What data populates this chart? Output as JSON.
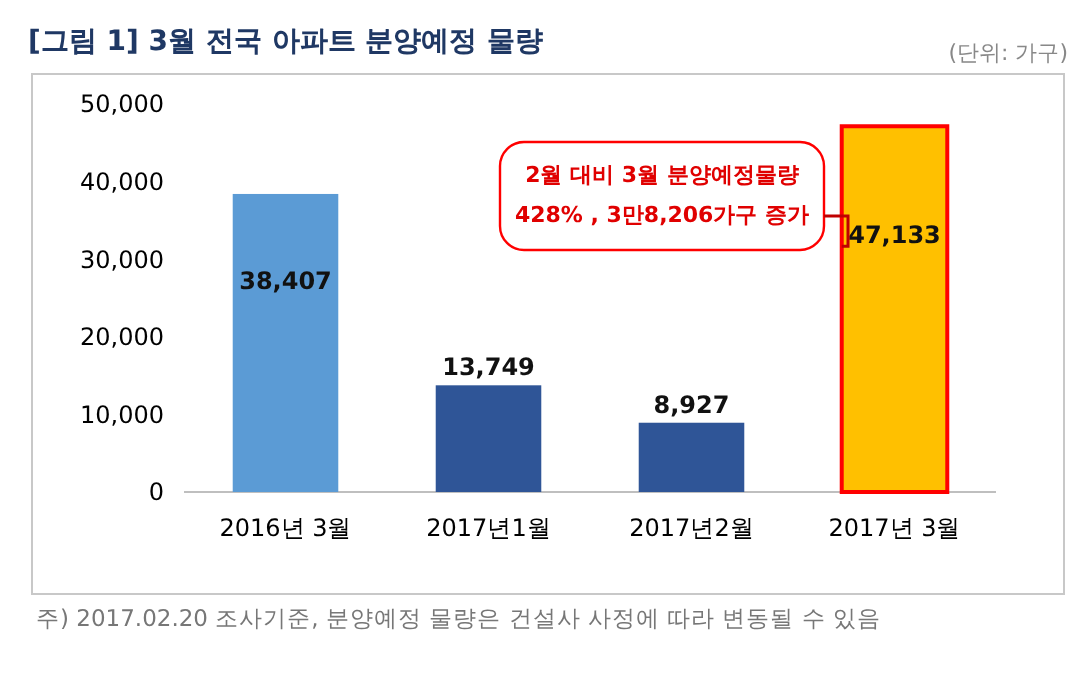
{
  "chart_data": {
    "type": "bar",
    "title": "[그림 1] 3월 전국 아파트 분양예정 물량",
    "subtitle": "(단위: 가구)",
    "categories": [
      "2016년 3월",
      "2017년1월",
      "2017년2월",
      "2017년 3월"
    ],
    "values": [
      38407,
      13749,
      8927,
      47133
    ],
    "colors": [
      "#5b9bd5",
      "#2f5597",
      "#2f5597",
      "#ffc000"
    ],
    "ylim": [
      0,
      50000
    ],
    "yticks": [
      {
        "value": 0,
        "label": "0"
      },
      {
        "value": 10000,
        "label": "10,000"
      },
      {
        "value": 20000,
        "label": "20,000"
      },
      {
        "value": 30000,
        "label": "30,000"
      },
      {
        "value": 40000,
        "label": "40,000"
      },
      {
        "value": 50000,
        "label": "50,000"
      }
    ],
    "grid": false,
    "value_labels": [
      "38,407",
      "13,749",
      "8,927",
      "47,133"
    ],
    "annotations": [
      "2월 대비 3월 분양예정물량\n428% , 3만8,206가구 증가",
      "주) 2017.02.20 조사기준, 분양예정 물량은 건설사 사정에 따라 변동될 수 있음"
    ]
  }
}
